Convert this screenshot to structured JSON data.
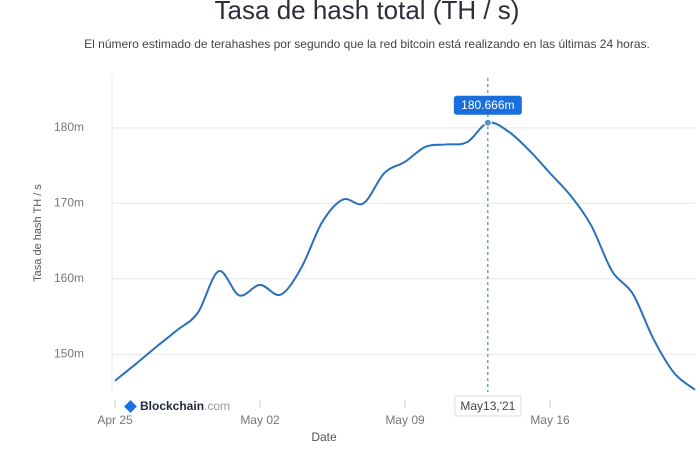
{
  "chart_data": {
    "type": "line",
    "title": "Tasa de hash total (TH / s)",
    "subtitle": "El número estimado de terahashes por segundo que la red bitcoin está realizando en las últimas 24 horas.",
    "y_label": "Tasa de hash TH / s",
    "x_label": "Date",
    "x": [
      "2021-04-25",
      "2021-04-26",
      "2021-04-27",
      "2021-04-28",
      "2021-04-29",
      "2021-04-30",
      "2021-05-01",
      "2021-05-02",
      "2021-05-03",
      "2021-05-04",
      "2021-05-05",
      "2021-05-06",
      "2021-05-07",
      "2021-05-08",
      "2021-05-09",
      "2021-05-10",
      "2021-05-11",
      "2021-05-12",
      "2021-05-13",
      "2021-05-14",
      "2021-05-15",
      "2021-05-16",
      "2021-05-17",
      "2021-05-18",
      "2021-05-19",
      "2021-05-20",
      "2021-05-21",
      "2021-05-22",
      "2021-05-23"
    ],
    "series": [
      {
        "name": "Tasa de hash total (TH / s)",
        "color": "#2c6fbb",
        "values": [
          146.5,
          148.7,
          151.0,
          153.2,
          155.5,
          161.0,
          157.8,
          159.2,
          157.9,
          161.5,
          167.5,
          170.5,
          170.0,
          174.0,
          175.5,
          177.5,
          177.8,
          178.1,
          180.666,
          179.5,
          177.0,
          174.0,
          171.0,
          167.0,
          161.0,
          158.0,
          152.0,
          147.5,
          145.3
        ]
      }
    ],
    "xlim": [
      "2021-04-25",
      "2021-05-23"
    ],
    "xticks": [
      {
        "value": "2021-04-25",
        "label": "Apr 25"
      },
      {
        "value": "2021-05-02",
        "label": "May 02"
      },
      {
        "value": "2021-05-09",
        "label": "May 09"
      },
      {
        "value": "2021-05-16",
        "label": "May 16"
      }
    ],
    "ylim": [
      145,
      187
    ],
    "yticks": [
      {
        "value": 150,
        "label": "150m"
      },
      {
        "value": 160,
        "label": "160m"
      },
      {
        "value": 170,
        "label": "170m"
      },
      {
        "value": 180,
        "label": "180m"
      }
    ],
    "grid": true,
    "tooltip": {
      "x": "2021-05-13",
      "value": 180.666,
      "label": "180.666m",
      "x_label": "May13,'21"
    },
    "brand": [
      "Blockchain",
      ".com"
    ]
  }
}
